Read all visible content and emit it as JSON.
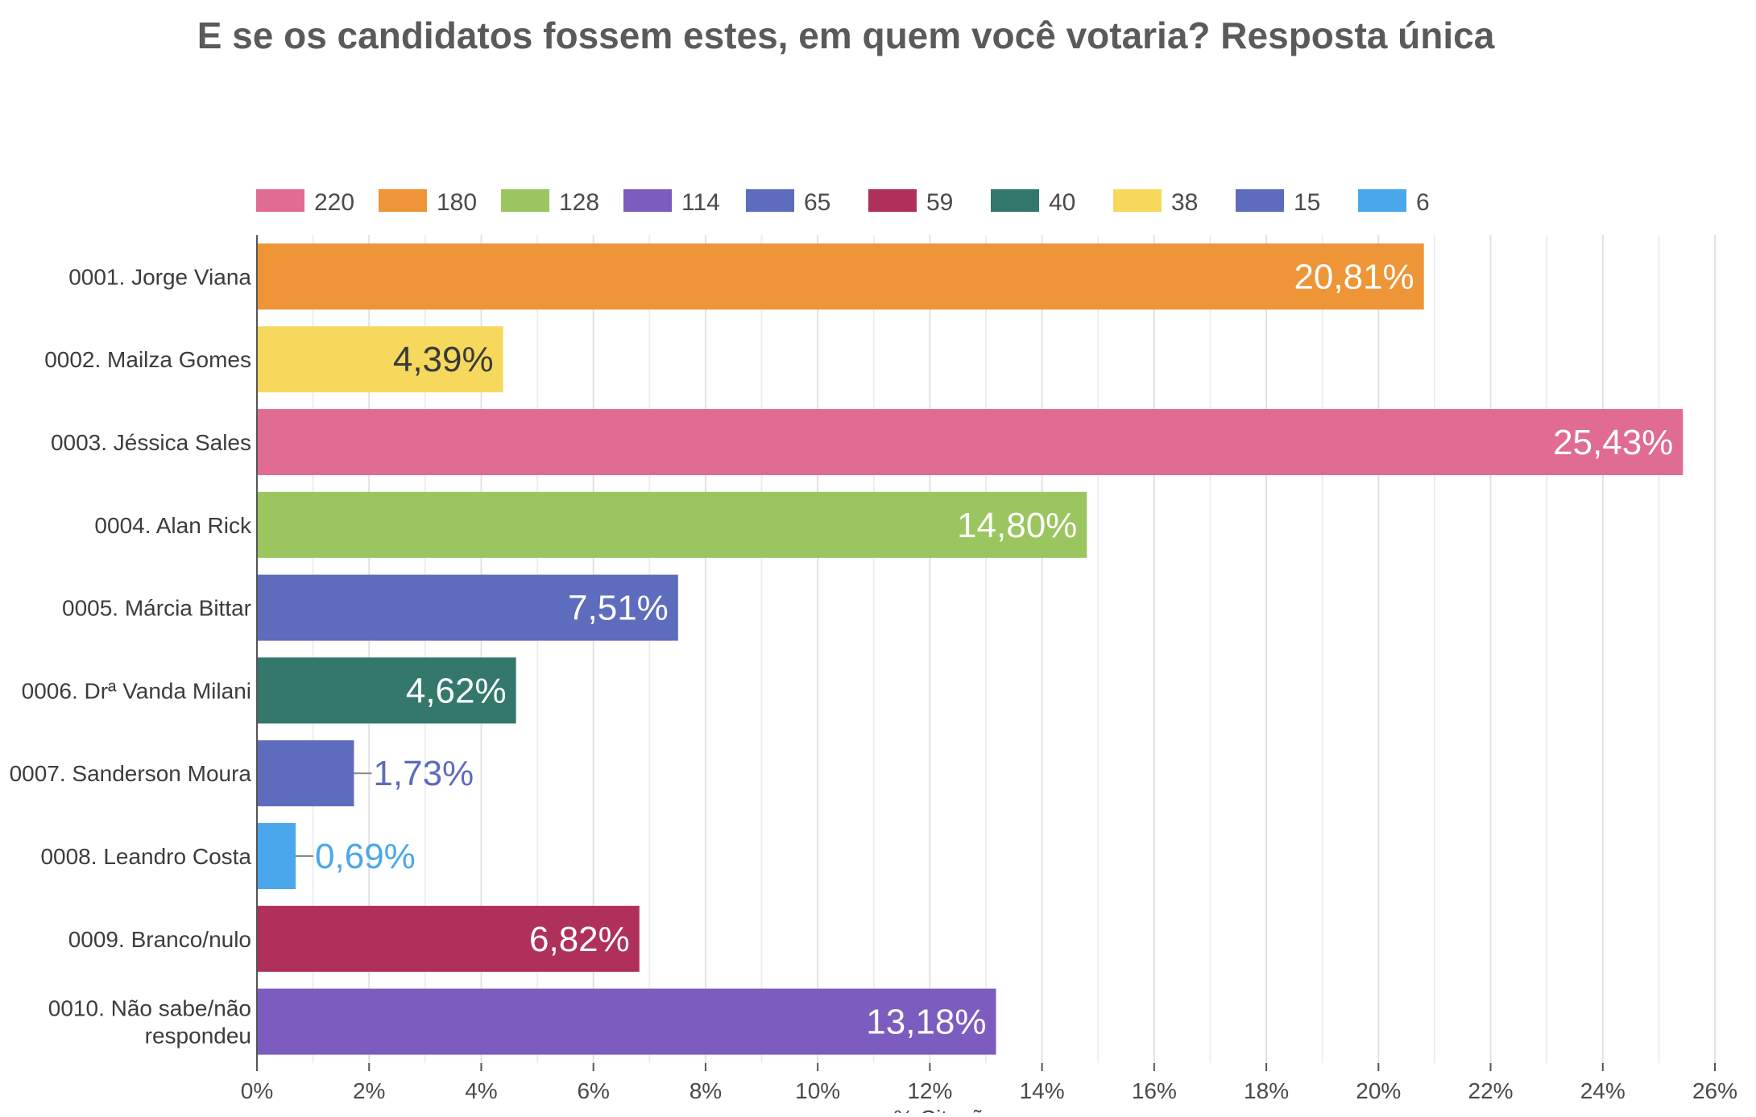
{
  "colors": {
    "pink": "#e06c93",
    "orange": "#ee9537",
    "green": "#9bc55f",
    "purple": "#7c5cbf",
    "indigo": "#5e6cbd",
    "crimson": "#b0305c",
    "teal": "#33786a",
    "yellow": "#f6d95c",
    "blue": "#4aa7ec"
  },
  "chart_data": {
    "type": "bar",
    "orientation": "horizontal",
    "title": "E se os candidatos fossem estes, em quem você votaria? Resposta única",
    "xlabel": "% Citações",
    "ylabel": "",
    "xlim": [
      0,
      26
    ],
    "x_ticks": [
      0,
      2,
      4,
      6,
      8,
      10,
      12,
      14,
      16,
      18,
      20,
      22,
      24,
      26
    ],
    "x_tick_labels": [
      "0%",
      "2%",
      "4%",
      "6%",
      "8%",
      "10%",
      "12%",
      "14%",
      "16%",
      "18%",
      "20%",
      "22%",
      "24%",
      "26%"
    ],
    "grid": true,
    "legend_position": "top",
    "legend": [
      {
        "label": "220",
        "color": "#e06c93"
      },
      {
        "label": "180",
        "color": "#ee9537"
      },
      {
        "label": "128",
        "color": "#9bc55f"
      },
      {
        "label": "114",
        "color": "#7c5cbf"
      },
      {
        "label": "65",
        "color": "#5e6cbd"
      },
      {
        "label": "59",
        "color": "#b0305c"
      },
      {
        "label": "40",
        "color": "#33786a"
      },
      {
        "label": "38",
        "color": "#f6d95c"
      },
      {
        "label": "15",
        "color": "#5e6cbd"
      },
      {
        "label": "6",
        "color": "#4aa7ec"
      }
    ],
    "categories": [
      "0001. Jorge Viana",
      "0002. Mailza Gomes",
      "0003. Jéssica Sales",
      "0004. Alan Rick",
      "0005. Márcia Bittar",
      "0006. Drª Vanda Milani",
      "0007. Sanderson Moura",
      "0008. Leandro Costa",
      "0009. Branco/nulo",
      "0010. Não sabe/não respondeu"
    ],
    "values": [
      20.81,
      4.39,
      25.43,
      14.8,
      7.51,
      4.62,
      1.73,
      0.69,
      6.82,
      13.18
    ],
    "value_labels": [
      "20,81%",
      "4,39%",
      "25,43%",
      "14,80%",
      "7,51%",
      "4,62%",
      "1,73%",
      "0,69%",
      "6,82%",
      "13,18%"
    ],
    "bar_colors": [
      "#ee9537",
      "#f6d95c",
      "#e06c93",
      "#9bc55f",
      "#5e6cbd",
      "#33786a",
      "#5e6cbd",
      "#4aa7ec",
      "#b0305c",
      "#7c5cbf"
    ],
    "label_colors": [
      "#ffffff",
      "#3a3a3a",
      "#ffffff",
      "#ffffff",
      "#ffffff",
      "#ffffff",
      "#5e6cbd",
      "#4aa7ec",
      "#ffffff",
      "#ffffff"
    ]
  }
}
